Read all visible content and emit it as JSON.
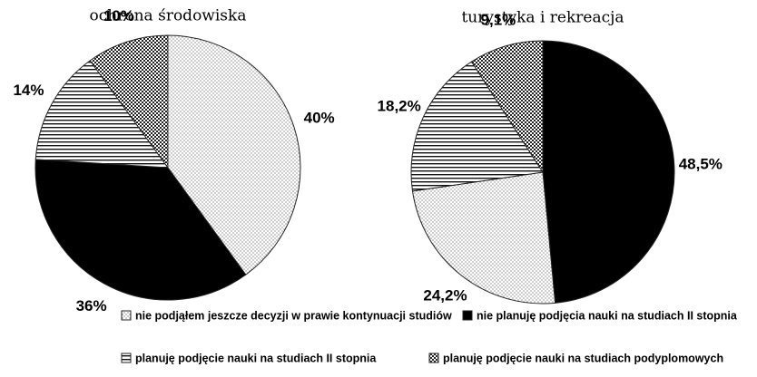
{
  "chart_data": [
    {
      "type": "pie",
      "title": "ochrona środowiska",
      "values": [
        40,
        36,
        14,
        10
      ],
      "value_labels": [
        "40%",
        "36%",
        "14%",
        "10%"
      ],
      "patterns": [
        "dots",
        "solid",
        "hstripes",
        "checker"
      ]
    },
    {
      "type": "pie",
      "title": "turystyka i rekreacja",
      "values": [
        48.5,
        24.2,
        18.2,
        9.1
      ],
      "value_labels": [
        "48,5%",
        "24,2%",
        "18,2%",
        "9,1%"
      ],
      "patterns": [
        "solid",
        "dots",
        "hstripes",
        "checker"
      ]
    }
  ],
  "legend": {
    "entries": [
      "nie podjąłem jeszcze decyzji w prawie kontynuacji studiów",
      "nie planuję podjęcia nauki na studiach II stopnia",
      "planuję podjęcie nauki na studiach II stopnia",
      "planuję podjęcie nauki na studiach podyplomowych"
    ],
    "patterns": [
      "dots",
      "solid",
      "hstripes",
      "checker"
    ]
  }
}
